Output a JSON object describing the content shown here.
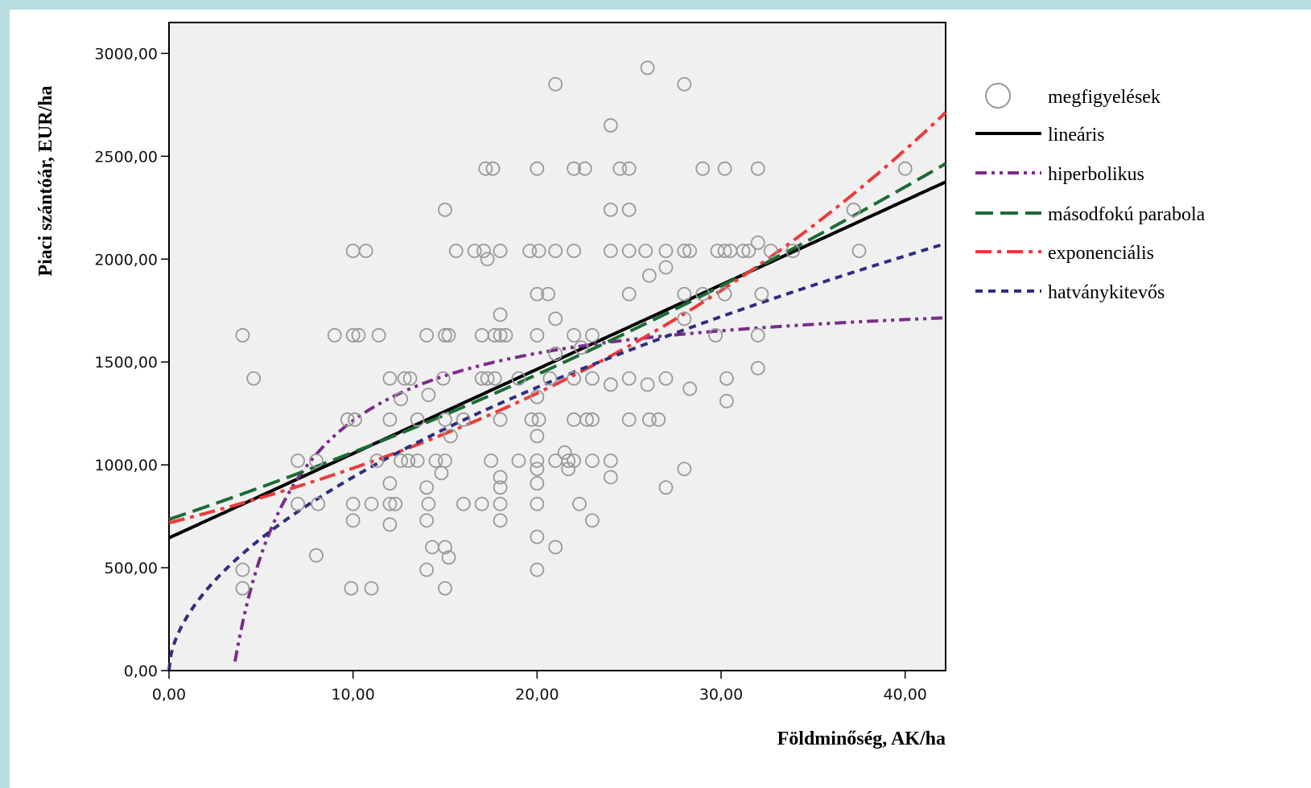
{
  "chart_data": {
    "type": "scatter",
    "xlabel": "Földminőség, AK/ha",
    "ylabel": "Piaci szántóár, EUR/ha",
    "xlim": [
      0,
      42.2
    ],
    "ylim": [
      0,
      3150
    ],
    "xticks": [
      0,
      10,
      20,
      30,
      40
    ],
    "xtick_labels": [
      "0,00",
      "10,00",
      "20,00",
      "30,00",
      "40,00"
    ],
    "yticks": [
      0,
      500,
      1000,
      1500,
      2000,
      2500,
      3000
    ],
    "ytick_labels": [
      "0,00",
      "500,00",
      "1000,00",
      "1500,00",
      "2000,00",
      "2500,00",
      "3000,00"
    ],
    "grid": false,
    "legend_position": "right",
    "background_color": "#f0f0f0",
    "scatter": {
      "name": "megfigyelések",
      "color": "#999999",
      "points": [
        [
          26,
          2930
        ],
        [
          21,
          2850
        ],
        [
          28,
          2850
        ],
        [
          24,
          2650
        ],
        [
          17.2,
          2440
        ],
        [
          17.6,
          2440
        ],
        [
          20,
          2440
        ],
        [
          22,
          2440
        ],
        [
          22.6,
          2440
        ],
        [
          24.5,
          2440
        ],
        [
          25,
          2440
        ],
        [
          29,
          2440
        ],
        [
          30.2,
          2440
        ],
        [
          32,
          2440
        ],
        [
          40,
          2440
        ],
        [
          15,
          2240
        ],
        [
          24,
          2240
        ],
        [
          25,
          2240
        ],
        [
          37.2,
          2240
        ],
        [
          10,
          2040
        ],
        [
          10.7,
          2040
        ],
        [
          15.6,
          2040
        ],
        [
          16.6,
          2040
        ],
        [
          17.1,
          2040
        ],
        [
          18,
          2040
        ],
        [
          19.6,
          2040
        ],
        [
          20.1,
          2040
        ],
        [
          21,
          2040
        ],
        [
          22,
          2040
        ],
        [
          24,
          2040
        ],
        [
          25,
          2040
        ],
        [
          25.9,
          2040
        ],
        [
          27,
          2040
        ],
        [
          28,
          2040
        ],
        [
          28.3,
          2040
        ],
        [
          29.8,
          2040
        ],
        [
          30.2,
          2040
        ],
        [
          30.5,
          2040
        ],
        [
          31.2,
          2040
        ],
        [
          31.5,
          2040
        ],
        [
          32.7,
          2040
        ],
        [
          33.9,
          2040
        ],
        [
          37.5,
          2040
        ],
        [
          17.3,
          2000
        ],
        [
          32,
          2080
        ],
        [
          27,
          1960
        ],
        [
          26.1,
          1920
        ],
        [
          20,
          1830
        ],
        [
          20.6,
          1830
        ],
        [
          25,
          1830
        ],
        [
          28,
          1830
        ],
        [
          29,
          1830
        ],
        [
          30.2,
          1830
        ],
        [
          32.2,
          1830
        ],
        [
          18,
          1730
        ],
        [
          21,
          1710
        ],
        [
          28,
          1710
        ],
        [
          4,
          1630
        ],
        [
          9,
          1630
        ],
        [
          10,
          1630
        ],
        [
          10.3,
          1630
        ],
        [
          11.4,
          1630
        ],
        [
          14,
          1630
        ],
        [
          15,
          1630
        ],
        [
          15.2,
          1630
        ],
        [
          17,
          1630
        ],
        [
          17.7,
          1630
        ],
        [
          18,
          1630
        ],
        [
          18.3,
          1630
        ],
        [
          20,
          1630
        ],
        [
          22,
          1630
        ],
        [
          23,
          1630
        ],
        [
          29.7,
          1630
        ],
        [
          32,
          1630
        ],
        [
          21,
          1540
        ],
        [
          22.4,
          1570
        ],
        [
          32,
          1470
        ],
        [
          4.6,
          1420
        ],
        [
          12,
          1420
        ],
        [
          12.8,
          1420
        ],
        [
          13.1,
          1420
        ],
        [
          14.9,
          1420
        ],
        [
          17,
          1420
        ],
        [
          17.3,
          1420
        ],
        [
          17.7,
          1420
        ],
        [
          19,
          1420
        ],
        [
          20.7,
          1420
        ],
        [
          22,
          1420
        ],
        [
          23,
          1420
        ],
        [
          25,
          1420
        ],
        [
          27,
          1420
        ],
        [
          30.3,
          1420
        ],
        [
          20,
          1330
        ],
        [
          12.6,
          1320
        ],
        [
          14.1,
          1340
        ],
        [
          24,
          1390
        ],
        [
          26,
          1390
        ],
        [
          28.3,
          1370
        ],
        [
          30.3,
          1310
        ],
        [
          9.7,
          1220
        ],
        [
          10.1,
          1220
        ],
        [
          12,
          1220
        ],
        [
          13.5,
          1220
        ],
        [
          15,
          1220
        ],
        [
          16,
          1220
        ],
        [
          18,
          1220
        ],
        [
          19.7,
          1220
        ],
        [
          20.1,
          1220
        ],
        [
          22,
          1220
        ],
        [
          22.7,
          1220
        ],
        [
          23,
          1220
        ],
        [
          25,
          1220
        ],
        [
          26.1,
          1220
        ],
        [
          26.6,
          1220
        ],
        [
          15.3,
          1140
        ],
        [
          20,
          1140
        ],
        [
          21.5,
          1060
        ],
        [
          7,
          1020
        ],
        [
          8,
          1020
        ],
        [
          11.3,
          1020
        ],
        [
          12.6,
          1020
        ],
        [
          13,
          1020
        ],
        [
          13.5,
          1020
        ],
        [
          14.5,
          1020
        ],
        [
          15,
          1020
        ],
        [
          17.5,
          1020
        ],
        [
          19,
          1020
        ],
        [
          20,
          1020
        ],
        [
          21,
          1020
        ],
        [
          21.7,
          1020
        ],
        [
          22,
          1020
        ],
        [
          23,
          1020
        ],
        [
          24,
          1020
        ],
        [
          14.8,
          960
        ],
        [
          20,
          980
        ],
        [
          21.7,
          980
        ],
        [
          28,
          980
        ],
        [
          18,
          940
        ],
        [
          24,
          940
        ],
        [
          12,
          910
        ],
        [
          18,
          890
        ],
        [
          20,
          910
        ],
        [
          14,
          890
        ],
        [
          27,
          890
        ],
        [
          7,
          810
        ],
        [
          8.1,
          810
        ],
        [
          10,
          810
        ],
        [
          11,
          810
        ],
        [
          12,
          810
        ],
        [
          12.3,
          810
        ],
        [
          14.1,
          810
        ],
        [
          16,
          810
        ],
        [
          17,
          810
        ],
        [
          18,
          810
        ],
        [
          20,
          810
        ],
        [
          22.3,
          810
        ],
        [
          10,
          730
        ],
        [
          14,
          730
        ],
        [
          18,
          730
        ],
        [
          23,
          730
        ],
        [
          12,
          710
        ],
        [
          20,
          650
        ],
        [
          14.3,
          600
        ],
        [
          15,
          600
        ],
        [
          21,
          600
        ],
        [
          8,
          560
        ],
        [
          15.2,
          550
        ],
        [
          4,
          490
        ],
        [
          14,
          490
        ],
        [
          20,
          490
        ],
        [
          4,
          400
        ],
        [
          9.9,
          400
        ],
        [
          11,
          400
        ],
        [
          15,
          400
        ]
      ]
    },
    "series": [
      {
        "name": "lineáris",
        "color": "#000000",
        "style": "solid",
        "model": "linear",
        "params": {
          "a": 645,
          "b": 41
        }
      },
      {
        "name": "hiperbolikus",
        "color": "#7b2c8a",
        "style": "dash-dot-dot",
        "model": "hyperbolic",
        "params": {
          "a": 1870,
          "b": -6550
        }
      },
      {
        "name": "másodfokú parabola",
        "color": "#1d6b36",
        "style": "dash",
        "model": "quadratic",
        "params": {
          "a": 735,
          "b": 30,
          "c": 0.26
        }
      },
      {
        "name": "exponenciális",
        "color": "#ee3a3a",
        "style": "dash-dot",
        "model": "exponential",
        "params": {
          "a": 718,
          "b": 0.0315
        }
      },
      {
        "name": "hatványkitevős",
        "color": "#2e2e80",
        "style": "short-dash",
        "model": "power",
        "params": {
          "a": 265,
          "b": 0.55
        }
      }
    ]
  }
}
